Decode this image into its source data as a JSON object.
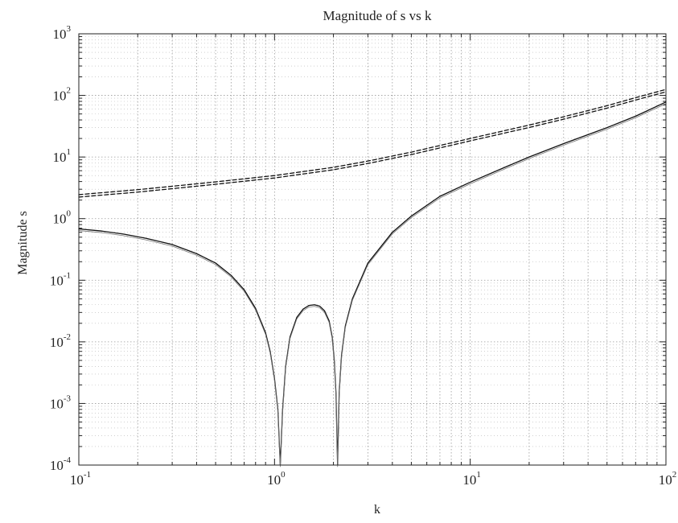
{
  "chart_data": {
    "type": "line",
    "title": "Magnitude of s vs k",
    "xlabel": "k",
    "ylabel": "Magnitude s",
    "xscale": "log",
    "yscale": "log",
    "xlim": [
      0.1,
      100
    ],
    "ylim": [
      0.0001,
      1000
    ],
    "grid": true,
    "legend": "none",
    "x_ticks": [
      {
        "base": "10",
        "exp": "-1"
      },
      {
        "base": "10",
        "exp": "0"
      },
      {
        "base": "10",
        "exp": "1"
      },
      {
        "base": "10",
        "exp": "2"
      }
    ],
    "y_ticks": [
      {
        "base": "10",
        "exp": "-4"
      },
      {
        "base": "10",
        "exp": "-3"
      },
      {
        "base": "10",
        "exp": "-2"
      },
      {
        "base": "10",
        "exp": "-1"
      },
      {
        "base": "10",
        "exp": "0"
      },
      {
        "base": "10",
        "exp": "1"
      },
      {
        "base": "10",
        "exp": "2"
      },
      {
        "base": "10",
        "exp": "3"
      }
    ],
    "series": [
      {
        "style": "solid",
        "color": "#111111",
        "points": [
          [
            0.1,
            0.68
          ],
          [
            0.13,
            0.63
          ],
          [
            0.17,
            0.56
          ],
          [
            0.22,
            0.48
          ],
          [
            0.3,
            0.38
          ],
          [
            0.4,
            0.27
          ],
          [
            0.5,
            0.19
          ],
          [
            0.6,
            0.12
          ],
          [
            0.7,
            0.07
          ],
          [
            0.8,
            0.035
          ],
          [
            0.9,
            0.014
          ],
          [
            0.95,
            0.007
          ],
          [
            1.0,
            0.0025
          ],
          [
            1.04,
            0.0008
          ],
          [
            1.07,
            0.0001
          ],
          [
            1.1,
            0.0008
          ],
          [
            1.14,
            0.004
          ],
          [
            1.2,
            0.012
          ],
          [
            1.3,
            0.025
          ],
          [
            1.4,
            0.034
          ],
          [
            1.5,
            0.039
          ],
          [
            1.6,
            0.04
          ],
          [
            1.7,
            0.038
          ],
          [
            1.8,
            0.032
          ],
          [
            1.9,
            0.022
          ],
          [
            1.97,
            0.012
          ],
          [
            2.02,
            0.005
          ],
          [
            2.06,
            0.0015
          ],
          [
            2.1,
            0.0001
          ],
          [
            2.14,
            0.0015
          ],
          [
            2.2,
            0.006
          ],
          [
            2.3,
            0.018
          ],
          [
            2.5,
            0.05
          ],
          [
            3.0,
            0.19
          ],
          [
            4.0,
            0.6
          ],
          [
            5.0,
            1.1
          ],
          [
            7.0,
            2.3
          ],
          [
            10.0,
            3.9
          ],
          [
            15.0,
            6.8
          ],
          [
            20.0,
            10
          ],
          [
            30.0,
            16.5
          ],
          [
            50.0,
            30
          ],
          [
            70.0,
            46
          ],
          [
            100.0,
            78
          ]
        ]
      },
      {
        "style": "dashed",
        "color": "#111111",
        "points": [
          [
            0.1,
            2.45
          ],
          [
            0.2,
            2.95
          ],
          [
            0.3,
            3.35
          ],
          [
            0.5,
            3.95
          ],
          [
            1.0,
            5.0
          ],
          [
            2.0,
            6.8
          ],
          [
            3.0,
            8.6
          ],
          [
            5.0,
            12
          ],
          [
            10.0,
            20
          ],
          [
            20.0,
            33
          ],
          [
            30.0,
            45
          ],
          [
            50.0,
            68
          ],
          [
            70.0,
            92
          ],
          [
            100.0,
            125
          ]
        ]
      }
    ]
  }
}
